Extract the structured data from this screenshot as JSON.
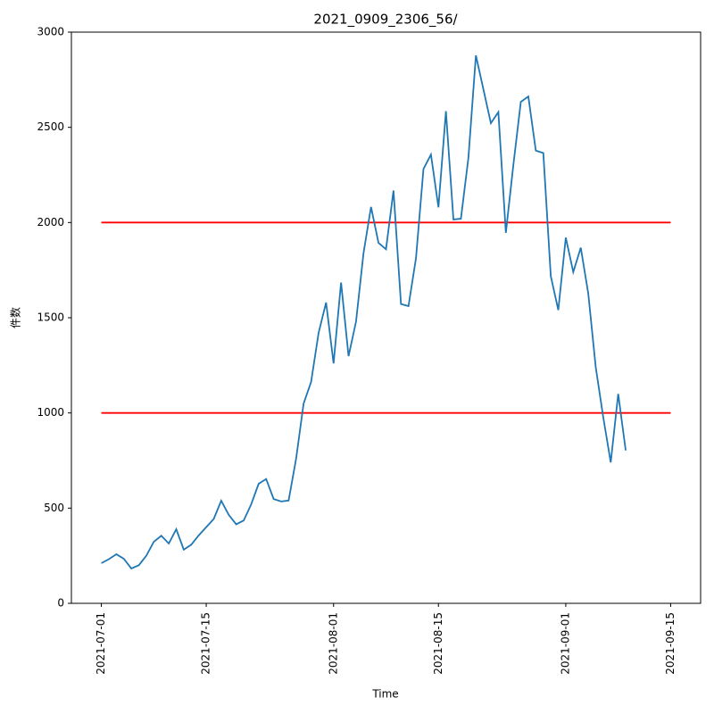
{
  "chart_data": {
    "type": "line",
    "title": "2021_0909_2306_56/",
    "x_label": "Time",
    "y_label": "件数",
    "x": [
      "2021-07-01",
      "2021-07-02",
      "2021-07-03",
      "2021-07-04",
      "2021-07-05",
      "2021-07-06",
      "2021-07-07",
      "2021-07-08",
      "2021-07-09",
      "2021-07-10",
      "2021-07-11",
      "2021-07-12",
      "2021-07-13",
      "2021-07-14",
      "2021-07-15",
      "2021-07-16",
      "2021-07-17",
      "2021-07-18",
      "2021-07-19",
      "2021-07-20",
      "2021-07-21",
      "2021-07-22",
      "2021-07-23",
      "2021-07-24",
      "2021-07-25",
      "2021-07-26",
      "2021-07-27",
      "2021-07-28",
      "2021-07-29",
      "2021-07-30",
      "2021-07-31",
      "2021-08-01",
      "2021-08-02",
      "2021-08-03",
      "2021-08-04",
      "2021-08-05",
      "2021-08-06",
      "2021-08-07",
      "2021-08-08",
      "2021-08-09",
      "2021-08-10",
      "2021-08-11",
      "2021-08-12",
      "2021-08-13",
      "2021-08-14",
      "2021-08-15",
      "2021-08-16",
      "2021-08-17",
      "2021-08-18",
      "2021-08-19",
      "2021-08-20",
      "2021-08-21",
      "2021-08-22",
      "2021-08-23",
      "2021-08-24",
      "2021-08-25",
      "2021-08-26",
      "2021-08-27",
      "2021-08-28",
      "2021-08-29",
      "2021-08-30",
      "2021-08-31",
      "2021-09-01",
      "2021-09-02",
      "2021-09-03",
      "2021-09-04",
      "2021-09-05",
      "2021-09-06",
      "2021-09-07",
      "2021-09-08",
      "2021-09-09"
    ],
    "series": [
      {
        "color": "#1f77b4",
        "values": [
          211,
          232,
          258,
          234,
          183,
          200,
          250,
          323,
          355,
          314,
          389,
          282,
          308,
          357,
          400,
          443,
          539,
          465,
          415,
          435,
          520,
          628,
          653,
          548,
          535,
          540,
          760,
          1049,
          1163,
          1420,
          1580,
          1260,
          1685,
          1298,
          1480,
          1840,
          2082,
          1893,
          1860,
          2168,
          1572,
          1561,
          1812,
          2281,
          2357,
          2080,
          2585,
          2016,
          2020,
          2340,
          2878,
          2700,
          2522,
          2580,
          1946,
          2302,
          2634,
          2662,
          2378,
          2365,
          1718,
          1540,
          1921,
          1740,
          1868,
          1628,
          1240,
          978,
          740,
          1100,
          803
        ]
      }
    ],
    "hlines": [
      {
        "y": 1000,
        "x": [
          "2021-07-01",
          "2021-09-15"
        ],
        "color": "#ff0000"
      },
      {
        "y": 2000,
        "x": [
          "2021-07-01",
          "2021-09-15"
        ],
        "color": "#ff0000"
      }
    ],
    "xlim": [
      "2021-06-27",
      "2021-09-19"
    ],
    "xticks": [
      "2021-07-01",
      "2021-07-15",
      "2021-08-01",
      "2021-08-15",
      "2021-09-01",
      "2021-09-15"
    ],
    "ylim": [
      0,
      3000
    ],
    "yticks": [
      0,
      500,
      1000,
      1500,
      2000,
      2500,
      3000
    ],
    "grid": false
  }
}
